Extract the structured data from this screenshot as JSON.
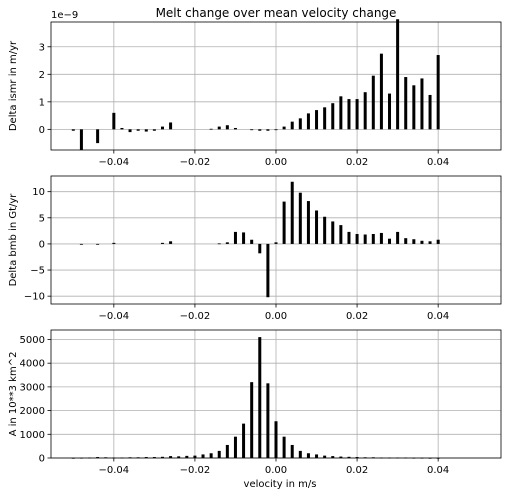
{
  "figure": {
    "title": "Melt change over mean velocity change",
    "xlabel": "velocity in m/s"
  },
  "colors": {
    "bar": "#000000",
    "grid": "#b0b0b0",
    "axis": "#000000",
    "background": "#ffffff"
  },
  "chart_data": [
    {
      "type": "bar",
      "title": "Melt change over mean velocity change",
      "ylabel": "Delta ismr in m/yr",
      "offset_label": "1e−9",
      "y_scale_exponent": -9,
      "xlim": [
        -0.0555,
        0.0555
      ],
      "ylim": [
        -0.75,
        3.9
      ],
      "xticks": [
        -0.04,
        -0.02,
        0.0,
        0.02,
        0.04
      ],
      "xtick_labels": [
        "−0.04",
        "−0.02",
        "0.00",
        "0.02",
        "0.04"
      ],
      "yticks": [
        0,
        1,
        2,
        3
      ],
      "ytick_labels": [
        "0",
        "1",
        "2",
        "3"
      ],
      "grid": true,
      "x": [
        -0.05,
        -0.048,
        -0.046,
        -0.044,
        -0.042,
        -0.04,
        -0.038,
        -0.036,
        -0.034,
        -0.032,
        -0.03,
        -0.028,
        -0.026,
        -0.024,
        -0.022,
        -0.02,
        -0.018,
        -0.016,
        -0.014,
        -0.012,
        -0.01,
        -0.008,
        -0.006,
        -0.004,
        -0.002,
        0.0,
        0.002,
        0.004,
        0.006,
        0.008,
        0.01,
        0.012,
        0.014,
        0.016,
        0.018,
        0.02,
        0.022,
        0.024,
        0.026,
        0.028,
        0.03,
        0.032,
        0.034,
        0.036,
        0.038,
        0.04,
        0.042,
        0.044,
        0.046,
        0.048,
        0.05
      ],
      "values": [
        -0.05,
        -0.75,
        0.0,
        -0.5,
        0.0,
        0.6,
        0.05,
        -0.1,
        -0.05,
        -0.08,
        -0.05,
        0.1,
        0.25,
        0.0,
        0.0,
        0.0,
        0.0,
        0.02,
        0.1,
        0.15,
        0.05,
        0.0,
        -0.02,
        -0.05,
        -0.05,
        -0.02,
        0.1,
        0.28,
        0.4,
        0.58,
        0.7,
        0.8,
        0.95,
        1.2,
        1.1,
        1.1,
        1.35,
        1.95,
        2.75,
        1.3,
        4.0,
        1.9,
        1.6,
        1.85,
        1.25,
        2.7,
        0.0,
        0.0,
        0.0,
        0.0,
        0.0
      ]
    },
    {
      "type": "bar",
      "ylabel": "Delta bmb in Gt/yr",
      "xlim": [
        -0.0555,
        0.0555
      ],
      "ylim": [
        -11.5,
        13.0
      ],
      "xticks": [
        -0.04,
        -0.02,
        0.0,
        0.02,
        0.04
      ],
      "xtick_labels": [
        "−0.04",
        "−0.02",
        "0.00",
        "0.02",
        "0.04"
      ],
      "yticks": [
        -10,
        -5,
        0,
        5,
        10
      ],
      "ytick_labels": [
        "−10",
        "−5",
        "0",
        "5",
        "10"
      ],
      "grid": true,
      "x": [
        -0.05,
        -0.048,
        -0.046,
        -0.044,
        -0.042,
        -0.04,
        -0.038,
        -0.036,
        -0.034,
        -0.032,
        -0.03,
        -0.028,
        -0.026,
        -0.024,
        -0.022,
        -0.02,
        -0.018,
        -0.016,
        -0.014,
        -0.012,
        -0.01,
        -0.008,
        -0.006,
        -0.004,
        -0.002,
        0.0,
        0.002,
        0.004,
        0.006,
        0.008,
        0.01,
        0.012,
        0.014,
        0.016,
        0.018,
        0.02,
        0.022,
        0.024,
        0.026,
        0.028,
        0.03,
        0.032,
        0.034,
        0.036,
        0.038,
        0.04,
        0.042,
        0.044,
        0.046,
        0.048,
        0.05
      ],
      "values": [
        0.0,
        -0.1,
        0.0,
        -0.1,
        0.0,
        0.2,
        0.0,
        0.0,
        0.0,
        0.0,
        0.0,
        0.2,
        0.5,
        0.0,
        0.0,
        0.0,
        0.0,
        0.0,
        0.1,
        0.3,
        2.3,
        2.2,
        0.8,
        -1.8,
        -10.2,
        0.3,
        8.1,
        11.9,
        9.8,
        8.2,
        6.4,
        5.2,
        4.3,
        3.6,
        2.3,
        1.9,
        1.8,
        1.9,
        2.1,
        1.0,
        2.3,
        1.1,
        0.9,
        0.6,
        0.5,
        0.8,
        0.0,
        0.0,
        0.0,
        0.0,
        0.0
      ]
    },
    {
      "type": "bar",
      "ylabel": "A in 10**3 km^2",
      "xlabel": "velocity in m/s",
      "xlim": [
        -0.0555,
        0.0555
      ],
      "ylim": [
        0,
        5400
      ],
      "xticks": [
        -0.04,
        -0.02,
        0.0,
        0.02,
        0.04
      ],
      "xtick_labels": [
        "−0.04",
        "−0.02",
        "0.00",
        "0.02",
        "0.04"
      ],
      "yticks": [
        0,
        1000,
        2000,
        3000,
        4000,
        5000
      ],
      "ytick_labels": [
        "0",
        "1000",
        "2000",
        "3000",
        "4000",
        "5000"
      ],
      "grid": true,
      "x": [
        -0.05,
        -0.048,
        -0.046,
        -0.044,
        -0.042,
        -0.04,
        -0.038,
        -0.036,
        -0.034,
        -0.032,
        -0.03,
        -0.028,
        -0.026,
        -0.024,
        -0.022,
        -0.02,
        -0.018,
        -0.016,
        -0.014,
        -0.012,
        -0.01,
        -0.008,
        -0.006,
        -0.004,
        -0.002,
        0.0,
        0.002,
        0.004,
        0.006,
        0.008,
        0.01,
        0.012,
        0.014,
        0.016,
        0.018,
        0.02,
        0.022,
        0.024,
        0.026,
        0.028,
        0.03,
        0.032,
        0.034,
        0.036,
        0.038,
        0.04,
        0.042,
        0.044,
        0.046,
        0.048,
        0.05
      ],
      "values": [
        5,
        10,
        20,
        40,
        30,
        20,
        20,
        30,
        30,
        40,
        40,
        50,
        80,
        70,
        90,
        100,
        150,
        200,
        300,
        550,
        900,
        1450,
        3200,
        5100,
        3150,
        1550,
        900,
        550,
        300,
        200,
        150,
        100,
        80,
        60,
        50,
        40,
        30,
        30,
        20,
        20,
        20,
        20,
        10,
        10,
        5,
        5,
        0,
        0,
        0,
        0,
        0
      ]
    }
  ]
}
